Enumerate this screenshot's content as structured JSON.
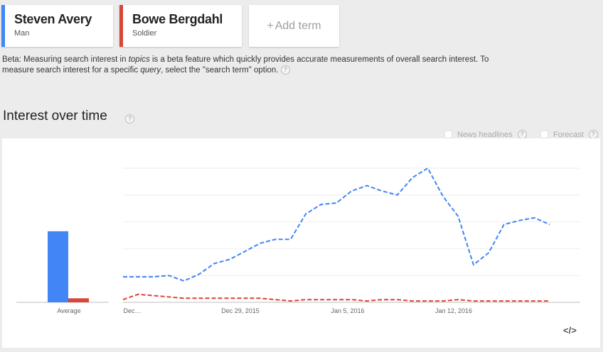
{
  "terms": [
    {
      "name": "Steven Avery",
      "category": "Man",
      "color": "#4285f4"
    },
    {
      "name": "Bowe Bergdahl",
      "category": "Soldier",
      "color": "#db4437"
    }
  ],
  "add_term": {
    "plus": "+",
    "label": "Add term"
  },
  "beta_note": {
    "part1": "Beta: Measuring search interest in ",
    "topics": "topics",
    "part2": " is a beta feature which quickly provides accurate measurements of overall search interest. To measure search interest for a specific ",
    "query": "query",
    "part3": ", select the \"search term\" option.",
    "help": "?"
  },
  "section_title": "Interest over time",
  "help_glyph": "?",
  "options": {
    "news": "News headlines",
    "forecast": "Forecast"
  },
  "embed_label": "</>",
  "chart_data": {
    "type": "line",
    "ylim": [
      0,
      100
    ],
    "average_bars": {
      "label": "Average",
      "values": [
        53,
        3
      ]
    },
    "x_tick_labels": [
      "Dec…",
      "Dec 29, 2015",
      "Jan 5, 2016",
      "Jan 12, 2016"
    ],
    "series": [
      {
        "color": "#4285f4",
        "values": [
          19,
          19,
          19,
          20,
          16,
          21,
          29,
          32,
          38,
          44,
          47,
          47,
          66,
          73,
          74,
          83,
          87,
          83,
          80,
          93,
          100,
          79,
          64,
          28,
          37,
          58,
          61,
          63,
          58
        ]
      },
      {
        "color": "#db4437",
        "values": [
          2,
          6,
          5,
          4,
          3,
          3,
          3,
          3,
          3,
          3,
          2,
          1,
          2,
          2,
          2,
          2,
          1,
          2,
          2,
          1,
          1,
          1,
          2,
          1,
          1,
          1,
          1,
          1,
          1
        ]
      }
    ]
  }
}
